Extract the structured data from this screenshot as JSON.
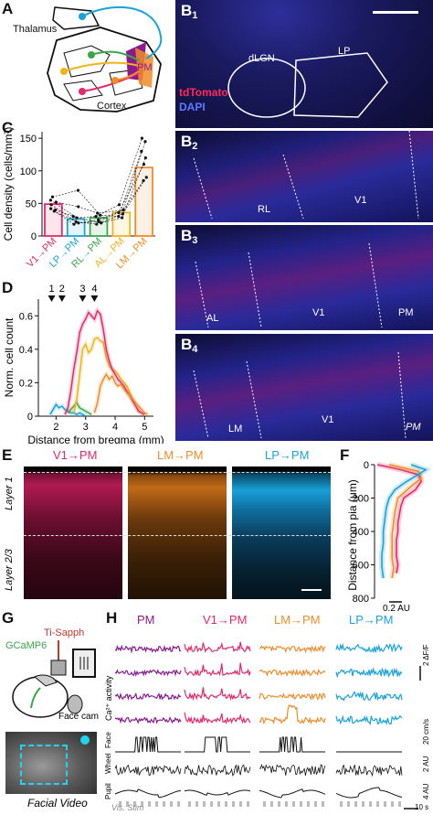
{
  "panels": {
    "a": {
      "label": "A",
      "thalamus": "Thalamus",
      "cortex": "Cortex",
      "pm": "PM"
    },
    "b1": {
      "label": "B",
      "sub": "1",
      "dlgn": "dLGN",
      "lp": "LP",
      "stain1": "tdTomato",
      "stain2": "DAPI"
    },
    "b2": {
      "label": "B",
      "sub": "2",
      "rl": "RL",
      "v1": "V1"
    },
    "b3": {
      "label": "B",
      "sub": "3",
      "al": "AL",
      "v1": "V1",
      "pm": "PM"
    },
    "b4": {
      "label": "B",
      "sub": "4",
      "lm": "LM",
      "v1": "V1",
      "pm": "PM"
    },
    "c": {
      "label": "C",
      "ylabel": "Cell density (cells/mm³)",
      "yticks": [
        "0",
        "50",
        "100",
        "150"
      ]
    },
    "d": {
      "label": "D",
      "ylabel": "Norm. cell count",
      "xlabel": "Distance from bregma (mm)",
      "yticks": [
        "0",
        "0.2",
        "0.4",
        "0.6"
      ],
      "xticks": [
        "2",
        "3",
        "4",
        "5"
      ],
      "markers": [
        "1",
        "2",
        "3",
        "4"
      ]
    },
    "e": {
      "label": "E",
      "t1": "V1→PM",
      "t2": "LM→PM",
      "t3": "LP→PM",
      "layer1": "Layer 1",
      "layer23": "Layer 2/3"
    },
    "f": {
      "label": "F",
      "ylabel": "Distance from pia (μm)",
      "yticks": [
        "0",
        "200",
        "400",
        "600",
        "800"
      ],
      "scale": "0.2 AU"
    },
    "g": {
      "label": "G",
      "laser": "Ti-Sapph",
      "indicator": "GCaMP6",
      "cam": "Face cam",
      "video": "Facial Video"
    },
    "h": {
      "label": "H",
      "cols": [
        "PM",
        "V1→PM",
        "LM→PM",
        "LP→PM"
      ],
      "ca": "Ca²⁺ activity",
      "rows": [
        "Face",
        "Wheel",
        "Pupil"
      ],
      "stim": "Vis. Stim",
      "scales": [
        "2 ΔF/F",
        "20 cm/s",
        "2 AU",
        "4 AU",
        "10 s"
      ]
    }
  },
  "colors": {
    "v1pm": "#e5286b",
    "lpPm": "#1aa3d9",
    "rlPm": "#3aa84a",
    "alPm": "#f2b21a",
    "lmPm": "#f28c28",
    "pm": "#8b1a8f",
    "dapi": "#2b2bd6",
    "tdtomato": "#ff2a55"
  },
  "chart_data": [
    {
      "type": "bar",
      "panel": "C",
      "categories": [
        "V1→PM",
        "LP→PM",
        "RL→PM",
        "AL→PM",
        "LM→PM"
      ],
      "values": [
        49,
        26,
        28,
        36,
        105
      ],
      "ylabel": "Cell density (cells/mm³)",
      "ylim": [
        0,
        160
      ]
    },
    {
      "type": "line",
      "panel": "D",
      "xlabel": "Distance from bregma (mm)",
      "ylabel": "Norm. cell count",
      "xlim": [
        1.4,
        5.3
      ],
      "ylim": [
        0,
        0.7
      ],
      "series": [
        {
          "x": [
            1.8,
            1.9,
            2.0,
            2.1,
            2.2,
            2.3,
            2.4,
            2.5,
            2.6,
            2.7,
            2.8,
            2.9,
            3.0
          ],
          "y": [
            0.01,
            0.04,
            0.07,
            0.05,
            0.06,
            0.04,
            0.03,
            0.02,
            0.02,
            0.01,
            0.02,
            0.01,
            0.0
          ]
        },
        {
          "x": [
            2.4,
            2.5,
            2.6,
            2.7,
            2.8,
            2.9,
            3.0,
            3.1,
            3.2
          ],
          "y": [
            0.02,
            0.04,
            0.06,
            0.08,
            0.05,
            0.04,
            0.03,
            0.02,
            0.01
          ]
        },
        {
          "x": [
            2.6,
            2.7,
            2.8,
            2.9,
            3.0,
            3.1,
            3.2,
            3.3,
            3.4,
            3.5,
            3.6,
            3.7,
            3.8,
            3.9,
            4.0,
            4.1,
            4.2,
            4.3,
            4.4,
            4.5,
            4.6,
            4.7,
            4.8,
            4.9,
            5.0
          ],
          "y": [
            0.02,
            0.1,
            0.25,
            0.4,
            0.43,
            0.38,
            0.4,
            0.46,
            0.47,
            0.45,
            0.44,
            0.35,
            0.3,
            0.28,
            0.27,
            0.25,
            0.22,
            0.2,
            0.18,
            0.14,
            0.1,
            0.06,
            0.03,
            0.02,
            0.01
          ]
        },
        {
          "x": [
            2.3,
            2.4,
            2.5,
            2.6,
            2.7,
            2.8,
            2.9,
            3.0,
            3.1,
            3.2,
            3.3,
            3.4,
            3.5,
            3.6,
            3.7,
            3.8,
            3.9,
            4.0,
            4.1,
            4.2,
            4.3,
            4.4,
            4.5,
            4.6,
            4.7,
            4.8,
            4.9,
            5.0
          ],
          "y": [
            0.01,
            0.05,
            0.15,
            0.28,
            0.38,
            0.5,
            0.55,
            0.58,
            0.62,
            0.6,
            0.58,
            0.63,
            0.61,
            0.52,
            0.4,
            0.33,
            0.28,
            0.25,
            0.22,
            0.2,
            0.18,
            0.15,
            0.12,
            0.09,
            0.06,
            0.03,
            0.02,
            0.01
          ]
        },
        {
          "x": [
            3.3,
            3.4,
            3.5,
            3.6,
            3.7,
            3.8,
            3.9,
            4.0,
            4.1,
            4.2,
            4.3,
            4.4,
            4.5,
            4.6,
            4.7,
            4.8,
            4.9,
            5.0,
            5.1
          ],
          "y": [
            0.02,
            0.08,
            0.18,
            0.22,
            0.25,
            0.22,
            0.24,
            0.2,
            0.18,
            0.19,
            0.16,
            0.14,
            0.12,
            0.1,
            0.08,
            0.06,
            0.04,
            0.02,
            0.01
          ]
        }
      ]
    },
    {
      "type": "line",
      "panel": "F",
      "ylabel": "Distance from pia (μm)",
      "ylim": [
        0,
        800
      ],
      "series": [
        {
          "x": [
            0.02,
            0.18,
            0.3,
            0.32,
            0.28,
            0.2,
            0.18,
            0.17,
            0.16,
            0.16,
            0.15,
            0.15,
            0.15,
            0.16,
            0.15
          ],
          "y": [
            0,
            30,
            60,
            100,
            150,
            200,
            250,
            300,
            350,
            400,
            450,
            500,
            550,
            600,
            650
          ]
        },
        {
          "x": [
            0.1,
            0.3,
            0.32,
            0.25,
            0.16,
            0.14,
            0.13,
            0.12,
            0.12,
            0.12,
            0.13,
            0.12
          ],
          "y": [
            0,
            40,
            80,
            130,
            200,
            280,
            350,
            420,
            500,
            560,
            620,
            680
          ]
        },
        {
          "x": [
            0.25,
            0.35,
            0.3,
            0.22,
            0.14,
            0.1,
            0.08,
            0.07,
            0.06,
            0.06,
            0.05,
            0.05,
            0.06
          ],
          "y": [
            0,
            30,
            60,
            100,
            150,
            200,
            260,
            330,
            400,
            470,
            540,
            610,
            680
          ]
        }
      ]
    }
  ]
}
